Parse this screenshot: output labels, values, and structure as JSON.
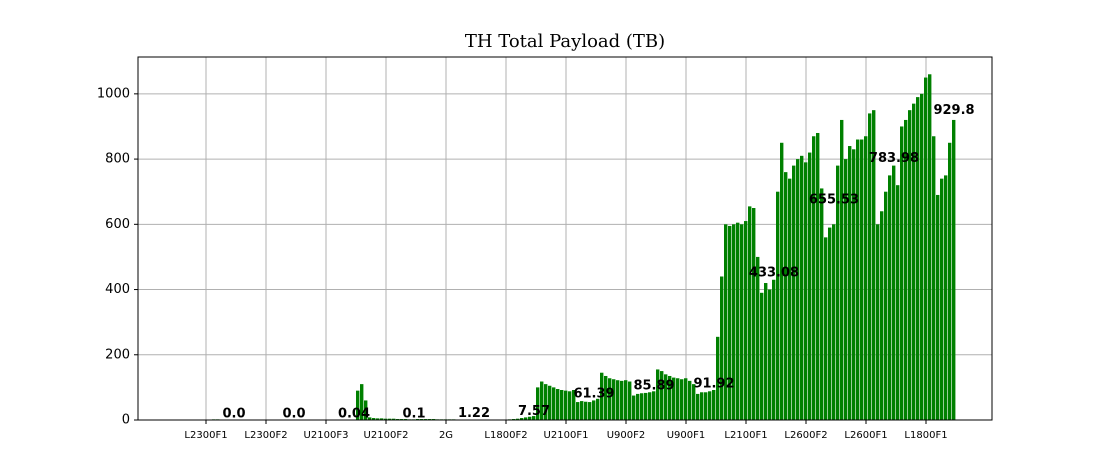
{
  "chart_data": {
    "type": "bar",
    "title": "TH Total Payload (TB)",
    "categories": [
      "L2300F1",
      "L2300F2",
      "U2100F3",
      "U2100F2",
      "2G",
      "L1800F2",
      "U2100F1",
      "U900F2",
      "U900F1",
      "L2100F1",
      "L2600F2",
      "L2600F1",
      "L1800F1"
    ],
    "values": [
      0,
      0,
      0.04,
      0.1,
      1.22,
      7.57,
      61.39,
      85.89,
      91.92,
      433.08,
      655.53,
      783.98,
      929.8
    ],
    "value_labels": [
      "0.0",
      "0.0",
      "0.04",
      "0.1",
      "1.22",
      "7.57",
      "61.39",
      "85.89",
      "91.92",
      "433.08",
      "655.53",
      "783.98",
      "929.8"
    ],
    "daily_values": [
      [
        0,
        0,
        0,
        0,
        0,
        0,
        0,
        1,
        1,
        2,
        2,
        1,
        1,
        0,
        0
      ],
      [
        0,
        0,
        0,
        0,
        0,
        0,
        0,
        0,
        0,
        0,
        0,
        1,
        0,
        0,
        0
      ],
      [
        0,
        0,
        0,
        0,
        0,
        0,
        0,
        0,
        0,
        0,
        0,
        0,
        0,
        0,
        0
      ],
      [
        90,
        110,
        60,
        8,
        6,
        5,
        5,
        4,
        4,
        4,
        3,
        3,
        3,
        2,
        2
      ],
      [
        3,
        3,
        3,
        3,
        3,
        2,
        2,
        2,
        2,
        2,
        1,
        1,
        1,
        1,
        1
      ],
      [
        0,
        0,
        0,
        0,
        0,
        1,
        1,
        1,
        2,
        3,
        4,
        6,
        8,
        10,
        12
      ],
      [
        100,
        118,
        110,
        105,
        100,
        95,
        92,
        90,
        88,
        92,
        55,
        58,
        56,
        55,
        60
      ],
      [
        65,
        145,
        135,
        128,
        125,
        122,
        120,
        122,
        118,
        75,
        80,
        82,
        83,
        85,
        88
      ],
      [
        155,
        150,
        140,
        135,
        130,
        128,
        125,
        128,
        120,
        110,
        80,
        85,
        85,
        88,
        92
      ],
      [
        255,
        440,
        600,
        595,
        600,
        605,
        600,
        610,
        655,
        650,
        500,
        390,
        420,
        400,
        430
      ],
      [
        700,
        850,
        760,
        740,
        780,
        800,
        810,
        790,
        820,
        870,
        880,
        710,
        560,
        590,
        600
      ],
      [
        780,
        920,
        800,
        840,
        830,
        860,
        860,
        870,
        940,
        950,
        600,
        640,
        700,
        750,
        780
      ],
      [
        720,
        900,
        920,
        950,
        970,
        990,
        1000,
        1050,
        1060,
        870,
        690,
        740,
        750,
        850,
        920
      ]
    ],
    "color": "#008000",
    "ylim": [
      0,
      1113
    ],
    "yticks": [
      0,
      200,
      400,
      600,
      800,
      1000
    ],
    "grid": true
  }
}
